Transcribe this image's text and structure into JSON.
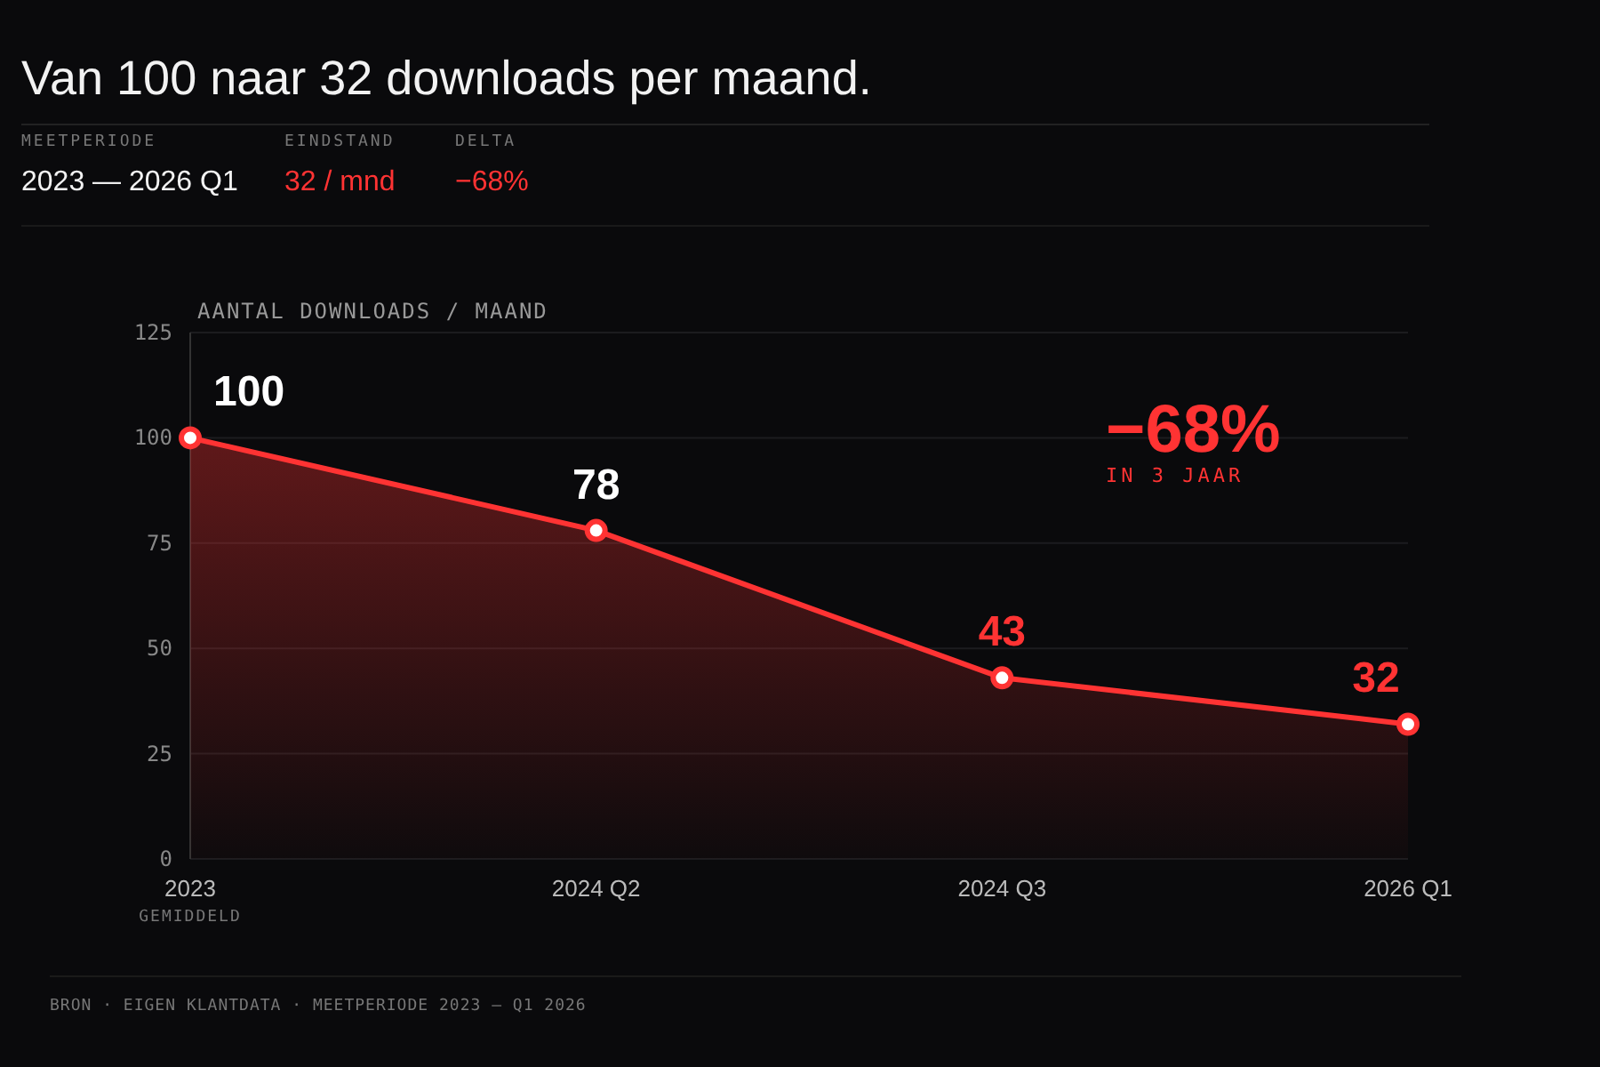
{
  "chart_data": {
    "type": "area",
    "title": "Van 100 naar 32 downloads per maand.",
    "ylabel": "AANTAL DOWNLOADS / MAAND",
    "categories": [
      "2023",
      "2024 Q2",
      "2024 Q3",
      "2026 Q1"
    ],
    "series": [
      {
        "color": "#ff3333",
        "values": [
          100,
          78,
          43,
          32
        ]
      }
    ],
    "ylim": [
      0,
      125
    ],
    "yticks": [
      0,
      25,
      50,
      75,
      100,
      125
    ],
    "grid": "y",
    "marker": "circle",
    "data_labels": true,
    "annotations": [
      "MEETPERIODE",
      "2023 — 2026 Q1",
      "EINDSTAND",
      "32 / mnd",
      "DELTA",
      "−68%",
      "−68%",
      "IN 3 JAAR",
      "GEMIDDELD",
      "BRON · EIGEN KLANTDATA · MEETPERIODE 2023 — Q1 2026"
    ]
  }
}
